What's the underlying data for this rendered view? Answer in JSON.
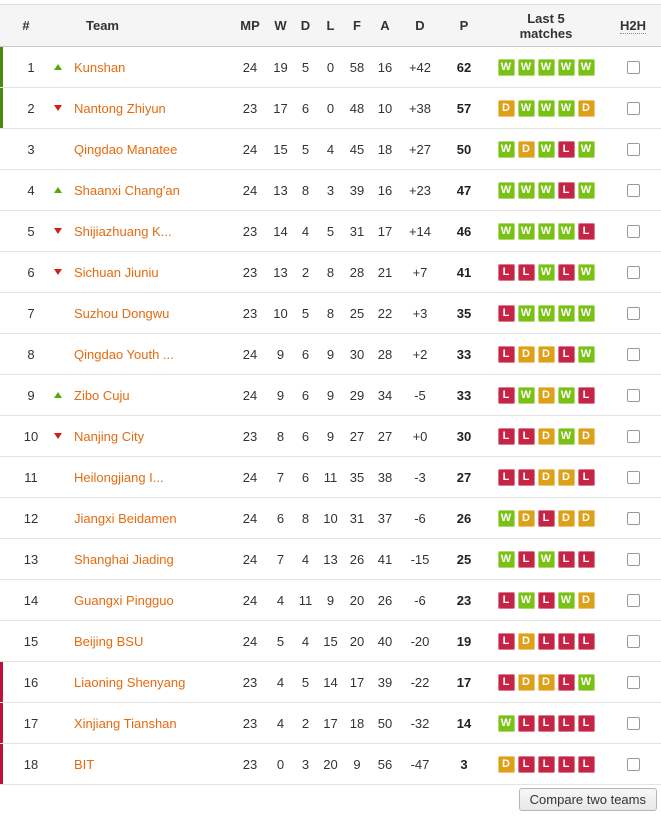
{
  "colors": {
    "win": "#7ac116",
    "draw": "#dda019",
    "loss": "#c52445",
    "team_link": "#e56b0f",
    "up_arrow": "#56a80c",
    "down_arrow": "#cc2213",
    "promotion_bar": "#4a8a0e",
    "relegation_bar": "#c0103c"
  },
  "table": {
    "columns": [
      {
        "key": "pos",
        "label": "#"
      },
      {
        "key": "team",
        "label": "Team"
      },
      {
        "key": "mp",
        "label": "MP"
      },
      {
        "key": "w",
        "label": "W"
      },
      {
        "key": "d",
        "label": "D"
      },
      {
        "key": "l",
        "label": "L"
      },
      {
        "key": "f",
        "label": "F"
      },
      {
        "key": "a",
        "label": "A"
      },
      {
        "key": "gd",
        "label": "D"
      },
      {
        "key": "p",
        "label": "P"
      },
      {
        "key": "last5",
        "label": "Last 5 matches"
      },
      {
        "key": "h2h",
        "label": "H2H"
      }
    ],
    "rows": [
      {
        "pos": 1,
        "movement": "up",
        "team": "Kunshan",
        "mp": 24,
        "w": 19,
        "d": 5,
        "l": 0,
        "f": 58,
        "a": 16,
        "gd": "+42",
        "p": 62,
        "last5": [
          "W",
          "W",
          "W",
          "W",
          "W"
        ],
        "zone": "promotion"
      },
      {
        "pos": 2,
        "movement": "down",
        "team": "Nantong Zhiyun",
        "mp": 23,
        "w": 17,
        "d": 6,
        "l": 0,
        "f": 48,
        "a": 10,
        "gd": "+38",
        "p": 57,
        "last5": [
          "D",
          "W",
          "W",
          "W",
          "D"
        ],
        "zone": "promotion"
      },
      {
        "pos": 3,
        "movement": null,
        "team": "Qingdao Manatee",
        "mp": 24,
        "w": 15,
        "d": 5,
        "l": 4,
        "f": 45,
        "a": 18,
        "gd": "+27",
        "p": 50,
        "last5": [
          "W",
          "D",
          "W",
          "L",
          "W"
        ],
        "zone": null
      },
      {
        "pos": 4,
        "movement": "up",
        "team": "Shaanxi Chang'an",
        "mp": 24,
        "w": 13,
        "d": 8,
        "l": 3,
        "f": 39,
        "a": 16,
        "gd": "+23",
        "p": 47,
        "last5": [
          "W",
          "W",
          "W",
          "L",
          "W"
        ],
        "zone": null
      },
      {
        "pos": 5,
        "movement": "down",
        "team": "Shijiazhuang K...",
        "mp": 23,
        "w": 14,
        "d": 4,
        "l": 5,
        "f": 31,
        "a": 17,
        "gd": "+14",
        "p": 46,
        "last5": [
          "W",
          "W",
          "W",
          "W",
          "L"
        ],
        "zone": null
      },
      {
        "pos": 6,
        "movement": "down",
        "team": "Sichuan Jiuniu",
        "mp": 23,
        "w": 13,
        "d": 2,
        "l": 8,
        "f": 28,
        "a": 21,
        "gd": "+7",
        "p": 41,
        "last5": [
          "L",
          "L",
          "W",
          "L",
          "W"
        ],
        "zone": null
      },
      {
        "pos": 7,
        "movement": null,
        "team": "Suzhou Dongwu",
        "mp": 23,
        "w": 10,
        "d": 5,
        "l": 8,
        "f": 25,
        "a": 22,
        "gd": "+3",
        "p": 35,
        "last5": [
          "L",
          "W",
          "W",
          "W",
          "W"
        ],
        "zone": null
      },
      {
        "pos": 8,
        "movement": null,
        "team": "Qingdao Youth ...",
        "mp": 24,
        "w": 9,
        "d": 6,
        "l": 9,
        "f": 30,
        "a": 28,
        "gd": "+2",
        "p": 33,
        "last5": [
          "L",
          "D",
          "D",
          "L",
          "W"
        ],
        "zone": null
      },
      {
        "pos": 9,
        "movement": "up",
        "team": "Zibo Cuju",
        "mp": 24,
        "w": 9,
        "d": 6,
        "l": 9,
        "f": 29,
        "a": 34,
        "gd": "-5",
        "p": 33,
        "last5": [
          "L",
          "W",
          "D",
          "W",
          "L"
        ],
        "zone": null
      },
      {
        "pos": 10,
        "movement": "down",
        "team": "Nanjing City",
        "mp": 23,
        "w": 8,
        "d": 6,
        "l": 9,
        "f": 27,
        "a": 27,
        "gd": "+0",
        "p": 30,
        "last5": [
          "L",
          "L",
          "D",
          "W",
          "D"
        ],
        "zone": null
      },
      {
        "pos": 11,
        "movement": null,
        "team": "Heilongjiang I...",
        "mp": 24,
        "w": 7,
        "d": 6,
        "l": 11,
        "f": 35,
        "a": 38,
        "gd": "-3",
        "p": 27,
        "last5": [
          "L",
          "L",
          "D",
          "D",
          "L"
        ],
        "zone": null
      },
      {
        "pos": 12,
        "movement": null,
        "team": "Jiangxi Beidamen",
        "mp": 24,
        "w": 6,
        "d": 8,
        "l": 10,
        "f": 31,
        "a": 37,
        "gd": "-6",
        "p": 26,
        "last5": [
          "W",
          "D",
          "L",
          "D",
          "D"
        ],
        "zone": null
      },
      {
        "pos": 13,
        "movement": null,
        "team": "Shanghai Jiading",
        "mp": 24,
        "w": 7,
        "d": 4,
        "l": 13,
        "f": 26,
        "a": 41,
        "gd": "-15",
        "p": 25,
        "last5": [
          "W",
          "L",
          "W",
          "L",
          "L"
        ],
        "zone": null
      },
      {
        "pos": 14,
        "movement": null,
        "team": "Guangxi Pingguo",
        "mp": 24,
        "w": 4,
        "d": 11,
        "l": 9,
        "f": 20,
        "a": 26,
        "gd": "-6",
        "p": 23,
        "last5": [
          "L",
          "W",
          "L",
          "W",
          "D"
        ],
        "zone": null
      },
      {
        "pos": 15,
        "movement": null,
        "team": "Beijing BSU",
        "mp": 24,
        "w": 5,
        "d": 4,
        "l": 15,
        "f": 20,
        "a": 40,
        "gd": "-20",
        "p": 19,
        "last5": [
          "L",
          "D",
          "L",
          "L",
          "L"
        ],
        "zone": null
      },
      {
        "pos": 16,
        "movement": null,
        "team": "Liaoning Shenyang",
        "mp": 23,
        "w": 4,
        "d": 5,
        "l": 14,
        "f": 17,
        "a": 39,
        "gd": "-22",
        "p": 17,
        "last5": [
          "L",
          "D",
          "D",
          "L",
          "W"
        ],
        "zone": "relegation"
      },
      {
        "pos": 17,
        "movement": null,
        "team": "Xinjiang Tianshan",
        "mp": 23,
        "w": 4,
        "d": 2,
        "l": 17,
        "f": 18,
        "a": 50,
        "gd": "-32",
        "p": 14,
        "last5": [
          "W",
          "L",
          "L",
          "L",
          "L"
        ],
        "zone": "relegation"
      },
      {
        "pos": 18,
        "movement": null,
        "team": "BIT",
        "mp": 23,
        "w": 0,
        "d": 3,
        "l": 20,
        "f": 9,
        "a": 56,
        "gd": "-47",
        "p": 3,
        "last5": [
          "D",
          "L",
          "L",
          "L",
          "L"
        ],
        "zone": "relegation"
      }
    ]
  },
  "footer": {
    "compare_button_label": "Compare two teams"
  }
}
